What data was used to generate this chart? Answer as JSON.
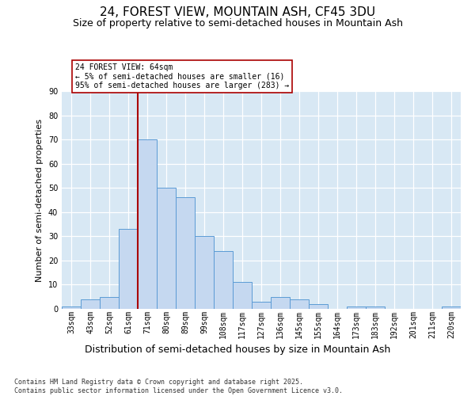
{
  "title": "24, FOREST VIEW, MOUNTAIN ASH, CF45 3DU",
  "subtitle": "Size of property relative to semi-detached houses in Mountain Ash",
  "xlabel": "Distribution of semi-detached houses by size in Mountain Ash",
  "ylabel": "Number of semi-detached properties",
  "categories": [
    "33sqm",
    "43sqm",
    "52sqm",
    "61sqm",
    "71sqm",
    "80sqm",
    "89sqm",
    "99sqm",
    "108sqm",
    "117sqm",
    "127sqm",
    "136sqm",
    "145sqm",
    "155sqm",
    "164sqm",
    "173sqm",
    "183sqm",
    "192sqm",
    "201sqm",
    "211sqm",
    "220sqm"
  ],
  "values": [
    1,
    4,
    5,
    33,
    70,
    50,
    46,
    30,
    24,
    11,
    3,
    5,
    4,
    2,
    0,
    1,
    1,
    0,
    0,
    0,
    1
  ],
  "bar_color": "#c5d8f0",
  "bar_edge_color": "#5b9bd5",
  "vline_position": 3.5,
  "vline_color": "#aa0000",
  "annotation_text": "24 FOREST VIEW: 64sqm\n← 5% of semi-detached houses are smaller (16)\n95% of semi-detached houses are larger (283) →",
  "ylim": [
    0,
    90
  ],
  "yticks": [
    0,
    10,
    20,
    30,
    40,
    50,
    60,
    70,
    80,
    90
  ],
  "grid_color": "#c8d8e8",
  "background_color": "#d8e8f4",
  "footer": "Contains HM Land Registry data © Crown copyright and database right 2025.\nContains public sector information licensed under the Open Government Licence v3.0.",
  "title_fontsize": 11,
  "subtitle_fontsize": 9,
  "xlabel_fontsize": 9,
  "ylabel_fontsize": 8,
  "tick_fontsize": 7
}
